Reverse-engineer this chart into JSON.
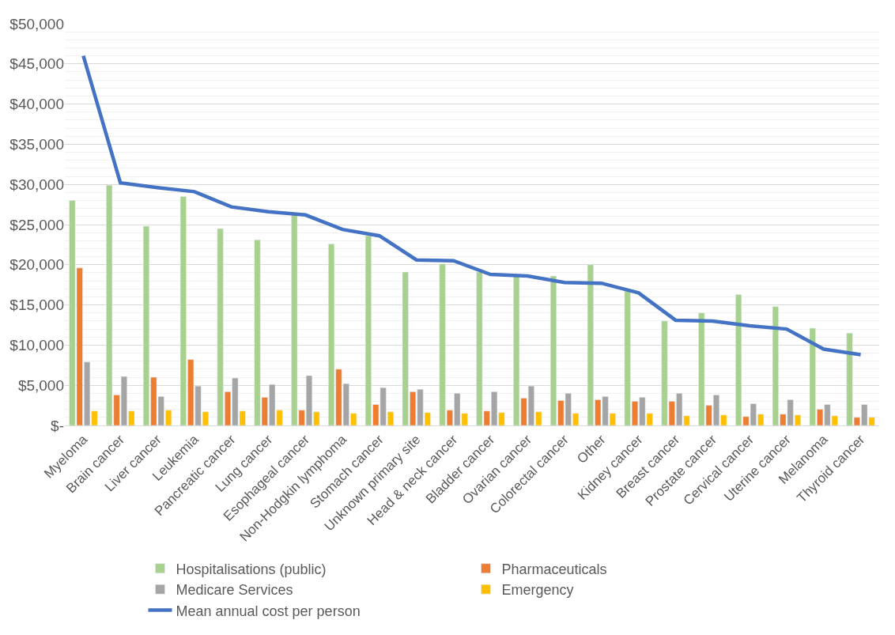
{
  "chart_data": {
    "type": "bar",
    "categories": [
      "Myeloma",
      "Brain cancer",
      "Liver cancer",
      "Leukemia",
      "Pancreatic cancer",
      "Lung cancer",
      "Esophageal cancer",
      "Non-Hodgkin lymphoma",
      "Stomach cancer",
      "Unknown primary site",
      "Head & neck cancer",
      "Bladder cancer",
      "Ovarian cancer",
      "Colorectal cancer",
      "Other",
      "Kidney cancer",
      "Breast cancer",
      "Prostate cancer",
      "Cervical cancer",
      "Uterine cancer",
      "Melanoma",
      "Thyroid cancer"
    ],
    "series": [
      {
        "name": "Hospitalisations (public)",
        "color": "#a9d18e",
        "values": [
          28000,
          29900,
          24800,
          28500,
          24500,
          23100,
          26200,
          22600,
          23600,
          19100,
          20100,
          19100,
          18800,
          18600,
          20000,
          16700,
          13000,
          14000,
          16300,
          14800,
          12100,
          11500
        ]
      },
      {
        "name": "Pharmaceuticals",
        "color": "#ed7d31",
        "values": [
          19600,
          3800,
          6000,
          8200,
          4200,
          3500,
          1900,
          7000,
          2600,
          4200,
          1900,
          1800,
          3400,
          3100,
          3200,
          3000,
          3000,
          2500,
          1100,
          1400,
          2000,
          1000
        ]
      },
      {
        "name": "Medicare Services",
        "color": "#a5a5a5",
        "values": [
          7900,
          6100,
          3600,
          4900,
          5900,
          5100,
          6200,
          5200,
          4700,
          4500,
          4000,
          4200,
          4900,
          4000,
          3600,
          3500,
          4000,
          3800,
          2700,
          3200,
          2600,
          2600
        ]
      },
      {
        "name": "Emergency",
        "color": "#ffc000",
        "values": [
          1800,
          1800,
          1900,
          1700,
          1800,
          1900,
          1700,
          1500,
          1700,
          1600,
          1500,
          1600,
          1700,
          1500,
          1500,
          1500,
          1200,
          1300,
          1400,
          1300,
          1200,
          1000
        ]
      },
      {
        "name": "Mean annual cost per person",
        "type": "line",
        "color": "#4472c4",
        "marker": "none",
        "values": [
          46000,
          30200,
          29600,
          29100,
          27200,
          26600,
          26200,
          24400,
          23600,
          20600,
          20500,
          18800,
          18600,
          17800,
          17700,
          16500,
          13100,
          13000,
          12400,
          12000,
          9500,
          8800
        ]
      }
    ],
    "ylim": [
      0,
      50000
    ],
    "yticks": [
      {
        "value": 0,
        "label": "$-"
      },
      {
        "value": 5000,
        "label": "$5,000"
      },
      {
        "value": 10000,
        "label": "$10,000"
      },
      {
        "value": 15000,
        "label": "$15,000"
      },
      {
        "value": 20000,
        "label": "$20,000"
      },
      {
        "value": 25000,
        "label": "$25,000"
      },
      {
        "value": 30000,
        "label": "$30,000"
      },
      {
        "value": 35000,
        "label": "$35,000"
      },
      {
        "value": 40000,
        "label": "$40,000"
      },
      {
        "value": 45000,
        "label": "$45,000"
      },
      {
        "value": 50000,
        "label": "$50,000"
      }
    ],
    "grid": "y",
    "legend": "bottom"
  }
}
